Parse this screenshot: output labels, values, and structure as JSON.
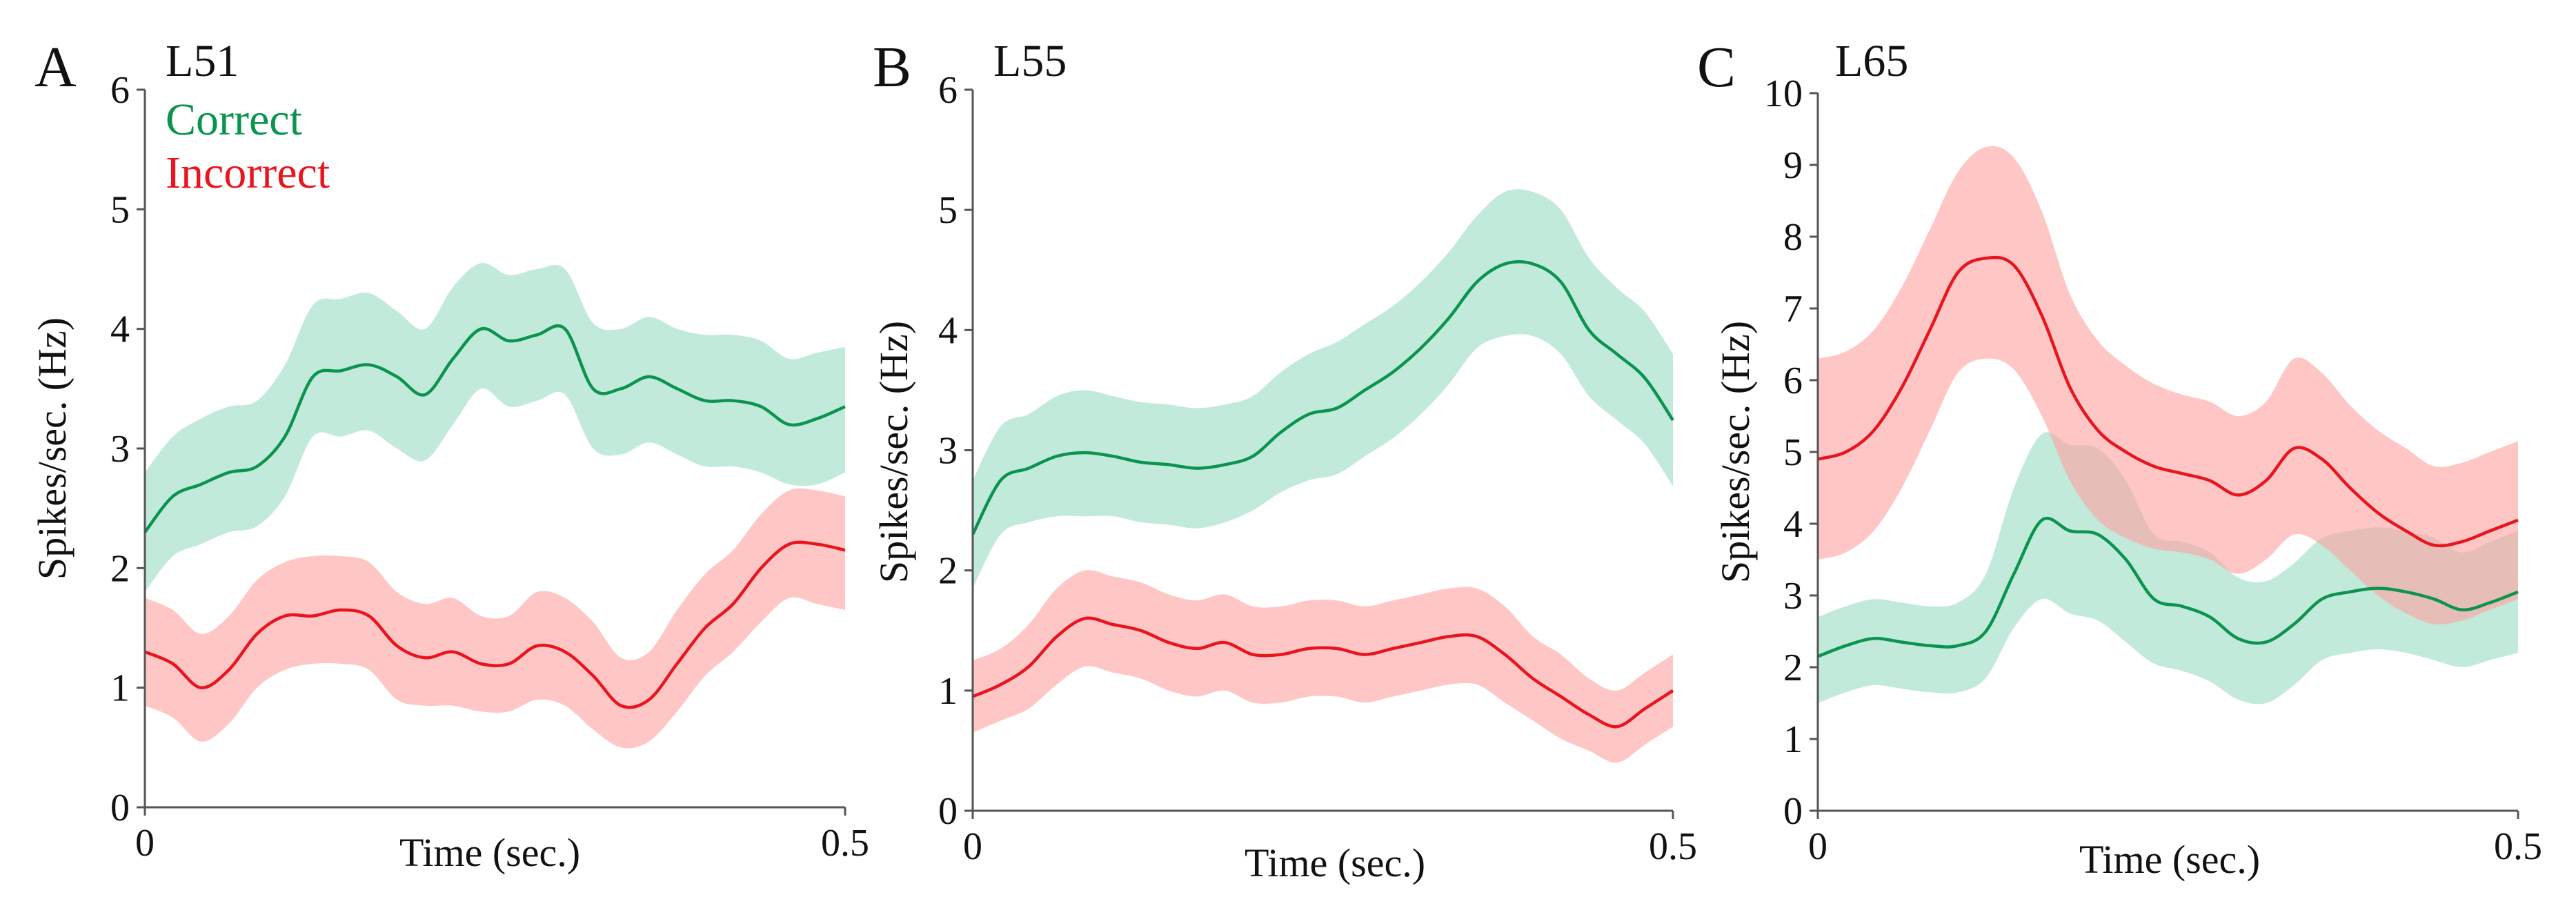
{
  "colors": {
    "correct_line": "#0a9450",
    "correct_band": "#8fd9bb",
    "incorrect_line": "#e8141e",
    "incorrect_band": "#ffa0a0"
  },
  "legend": {
    "correct": "Correct",
    "incorrect": "Incorrect"
  },
  "chart_data": [
    {
      "type": "line",
      "panel": "A",
      "title": "L51",
      "xlabel": "Time (sec.)",
      "ylabel": "Spikes/sec. (Hz)",
      "xlim": [
        0,
        0.5
      ],
      "ylim": [
        0,
        6
      ],
      "x_ticks": [
        "0",
        "0.5"
      ],
      "y_ticks": [
        "0",
        "1",
        "2",
        "3",
        "4",
        "5",
        "6"
      ],
      "series": [
        {
          "name": "Correct",
          "x": [
            0,
            0.02,
            0.04,
            0.06,
            0.08,
            0.1,
            0.12,
            0.14,
            0.16,
            0.18,
            0.2,
            0.22,
            0.24,
            0.26,
            0.28,
            0.3,
            0.32,
            0.34,
            0.36,
            0.38,
            0.4,
            0.42,
            0.44,
            0.46,
            0.48,
            0.5
          ],
          "values": [
            2.3,
            2.6,
            2.7,
            2.8,
            2.85,
            3.1,
            3.6,
            3.65,
            3.7,
            3.6,
            3.45,
            3.75,
            4.0,
            3.9,
            3.95,
            4.0,
            3.5,
            3.5,
            3.6,
            3.5,
            3.4,
            3.4,
            3.35,
            3.2,
            3.25,
            3.35
          ],
          "lower": [
            1.8,
            2.1,
            2.2,
            2.3,
            2.35,
            2.6,
            3.1,
            3.1,
            3.15,
            3.0,
            2.9,
            3.2,
            3.5,
            3.35,
            3.4,
            3.45,
            3.0,
            2.95,
            3.05,
            2.95,
            2.85,
            2.85,
            2.8,
            2.7,
            2.7,
            2.8
          ],
          "upper": [
            2.8,
            3.1,
            3.25,
            3.35,
            3.4,
            3.7,
            4.2,
            4.25,
            4.3,
            4.15,
            4.0,
            4.35,
            4.55,
            4.45,
            4.5,
            4.5,
            4.05,
            4.0,
            4.1,
            4.0,
            3.95,
            3.95,
            3.9,
            3.75,
            3.8,
            3.85
          ]
        },
        {
          "name": "Incorrect",
          "x": [
            0,
            0.02,
            0.04,
            0.06,
            0.08,
            0.1,
            0.12,
            0.14,
            0.16,
            0.18,
            0.2,
            0.22,
            0.24,
            0.26,
            0.28,
            0.3,
            0.32,
            0.34,
            0.36,
            0.38,
            0.4,
            0.42,
            0.44,
            0.46,
            0.48,
            0.5
          ],
          "values": [
            1.3,
            1.2,
            1.0,
            1.15,
            1.45,
            1.6,
            1.6,
            1.65,
            1.6,
            1.35,
            1.25,
            1.3,
            1.2,
            1.2,
            1.35,
            1.3,
            1.1,
            0.85,
            0.9,
            1.2,
            1.5,
            1.7,
            2.0,
            2.2,
            2.2,
            2.15
          ],
          "lower": [
            0.85,
            0.75,
            0.55,
            0.7,
            1.0,
            1.15,
            1.2,
            1.2,
            1.15,
            0.9,
            0.85,
            0.85,
            0.8,
            0.8,
            0.9,
            0.85,
            0.65,
            0.5,
            0.55,
            0.8,
            1.1,
            1.3,
            1.55,
            1.75,
            1.7,
            1.65
          ],
          "upper": [
            1.75,
            1.65,
            1.45,
            1.6,
            1.9,
            2.05,
            2.1,
            2.1,
            2.05,
            1.8,
            1.7,
            1.75,
            1.6,
            1.6,
            1.8,
            1.75,
            1.55,
            1.25,
            1.3,
            1.65,
            1.95,
            2.15,
            2.45,
            2.65,
            2.65,
            2.6
          ]
        }
      ]
    },
    {
      "type": "line",
      "panel": "B",
      "title": "L55",
      "xlabel": "Time (sec.)",
      "ylabel": "Spikes/sec. (Hz)",
      "xlim": [
        0,
        0.5
      ],
      "ylim": [
        0,
        6
      ],
      "x_ticks": [
        "0",
        "0.5"
      ],
      "y_ticks": [
        "0",
        "1",
        "2",
        "3",
        "4",
        "5",
        "6"
      ],
      "series": [
        {
          "name": "Correct",
          "x": [
            0,
            0.02,
            0.04,
            0.06,
            0.08,
            0.1,
            0.12,
            0.14,
            0.16,
            0.18,
            0.2,
            0.22,
            0.24,
            0.26,
            0.28,
            0.3,
            0.32,
            0.34,
            0.36,
            0.38,
            0.4,
            0.42,
            0.44,
            0.46,
            0.48,
            0.5
          ],
          "values": [
            2.3,
            2.75,
            2.85,
            2.95,
            2.98,
            2.95,
            2.9,
            2.88,
            2.85,
            2.88,
            2.95,
            3.15,
            3.3,
            3.35,
            3.5,
            3.65,
            3.85,
            4.1,
            4.4,
            4.55,
            4.55,
            4.4,
            4.0,
            3.8,
            3.6,
            3.25
          ],
          "lower": [
            1.85,
            2.3,
            2.4,
            2.45,
            2.45,
            2.45,
            2.4,
            2.38,
            2.35,
            2.4,
            2.5,
            2.65,
            2.75,
            2.8,
            2.95,
            3.1,
            3.3,
            3.55,
            3.85,
            3.95,
            3.95,
            3.8,
            3.45,
            3.25,
            3.05,
            2.7
          ],
          "upper": [
            2.75,
            3.2,
            3.3,
            3.45,
            3.5,
            3.45,
            3.4,
            3.38,
            3.35,
            3.38,
            3.45,
            3.65,
            3.8,
            3.9,
            4.05,
            4.2,
            4.4,
            4.65,
            4.95,
            5.15,
            5.15,
            5.0,
            4.6,
            4.35,
            4.15,
            3.8
          ]
        },
        {
          "name": "Incorrect",
          "x": [
            0,
            0.02,
            0.04,
            0.06,
            0.08,
            0.1,
            0.12,
            0.14,
            0.16,
            0.18,
            0.2,
            0.22,
            0.24,
            0.26,
            0.28,
            0.3,
            0.32,
            0.34,
            0.36,
            0.38,
            0.4,
            0.42,
            0.44,
            0.46,
            0.48,
            0.5
          ],
          "values": [
            0.95,
            1.05,
            1.2,
            1.45,
            1.6,
            1.55,
            1.5,
            1.4,
            1.35,
            1.4,
            1.3,
            1.3,
            1.35,
            1.35,
            1.3,
            1.35,
            1.4,
            1.45,
            1.45,
            1.3,
            1.1,
            0.95,
            0.8,
            0.7,
            0.85,
            1.0
          ],
          "lower": [
            0.65,
            0.75,
            0.85,
            1.05,
            1.2,
            1.15,
            1.1,
            1.0,
            0.95,
            1.0,
            0.9,
            0.9,
            0.95,
            0.95,
            0.9,
            0.95,
            1.0,
            1.05,
            1.05,
            0.9,
            0.75,
            0.6,
            0.5,
            0.4,
            0.55,
            0.7
          ],
          "upper": [
            1.25,
            1.35,
            1.55,
            1.85,
            2.0,
            1.95,
            1.9,
            1.8,
            1.75,
            1.8,
            1.7,
            1.7,
            1.75,
            1.75,
            1.7,
            1.75,
            1.8,
            1.85,
            1.85,
            1.7,
            1.45,
            1.3,
            1.1,
            1.0,
            1.15,
            1.3
          ]
        }
      ]
    },
    {
      "type": "line",
      "panel": "C",
      "title": "L65",
      "xlabel": "Time (sec.)",
      "ylabel": "Spikes/sec. (Hz)",
      "xlim": [
        0,
        0.5
      ],
      "ylim": [
        0,
        10
      ],
      "x_ticks": [
        "0",
        "0.5"
      ],
      "y_ticks": [
        "0",
        "1",
        "2",
        "3",
        "4",
        "5",
        "6",
        "7",
        "8",
        "9",
        "10"
      ],
      "series": [
        {
          "name": "Correct",
          "x": [
            0,
            0.02,
            0.04,
            0.06,
            0.08,
            0.1,
            0.12,
            0.14,
            0.16,
            0.18,
            0.2,
            0.22,
            0.24,
            0.26,
            0.28,
            0.3,
            0.32,
            0.34,
            0.36,
            0.38,
            0.4,
            0.42,
            0.44,
            0.46,
            0.48,
            0.5
          ],
          "values": [
            2.15,
            2.3,
            2.4,
            2.35,
            2.3,
            2.3,
            2.5,
            3.3,
            4.05,
            3.9,
            3.85,
            3.5,
            2.95,
            2.85,
            2.7,
            2.4,
            2.35,
            2.6,
            2.95,
            3.05,
            3.1,
            3.05,
            2.95,
            2.8,
            2.9,
            3.05
          ],
          "lower": [
            1.5,
            1.65,
            1.75,
            1.7,
            1.65,
            1.65,
            1.85,
            2.55,
            2.95,
            2.75,
            2.65,
            2.35,
            2.05,
            1.95,
            1.8,
            1.55,
            1.5,
            1.75,
            2.1,
            2.2,
            2.25,
            2.2,
            2.1,
            2.0,
            2.1,
            2.2
          ],
          "upper": [
            2.7,
            2.85,
            2.95,
            2.9,
            2.85,
            2.9,
            3.3,
            4.5,
            5.25,
            5.1,
            5.05,
            4.6,
            3.85,
            3.75,
            3.6,
            3.25,
            3.2,
            3.45,
            3.8,
            3.9,
            3.95,
            3.9,
            3.8,
            3.6,
            3.75,
            3.9
          ]
        },
        {
          "name": "Incorrect",
          "x": [
            0,
            0.02,
            0.04,
            0.06,
            0.08,
            0.1,
            0.12,
            0.14,
            0.16,
            0.18,
            0.2,
            0.22,
            0.24,
            0.26,
            0.28,
            0.3,
            0.32,
            0.34,
            0.36,
            0.38,
            0.4,
            0.42,
            0.44,
            0.46,
            0.48,
            0.5
          ],
          "values": [
            4.9,
            5.0,
            5.3,
            5.9,
            6.7,
            7.5,
            7.7,
            7.6,
            6.9,
            5.9,
            5.3,
            5.0,
            4.8,
            4.7,
            4.6,
            4.4,
            4.6,
            5.05,
            4.9,
            4.5,
            4.15,
            3.9,
            3.7,
            3.75,
            3.9,
            4.05
          ],
          "lower": [
            3.5,
            3.6,
            3.9,
            4.5,
            5.3,
            6.1,
            6.3,
            6.15,
            5.5,
            4.6,
            4.05,
            3.8,
            3.65,
            3.6,
            3.5,
            3.3,
            3.5,
            3.85,
            3.7,
            3.35,
            3.0,
            2.75,
            2.6,
            2.65,
            2.8,
            2.95
          ],
          "upper": [
            6.3,
            6.4,
            6.7,
            7.3,
            8.1,
            8.9,
            9.25,
            9.1,
            8.35,
            7.2,
            6.55,
            6.2,
            5.95,
            5.8,
            5.7,
            5.5,
            5.7,
            6.3,
            6.1,
            5.65,
            5.3,
            5.05,
            4.8,
            4.85,
            5.0,
            5.15
          ]
        }
      ]
    }
  ]
}
